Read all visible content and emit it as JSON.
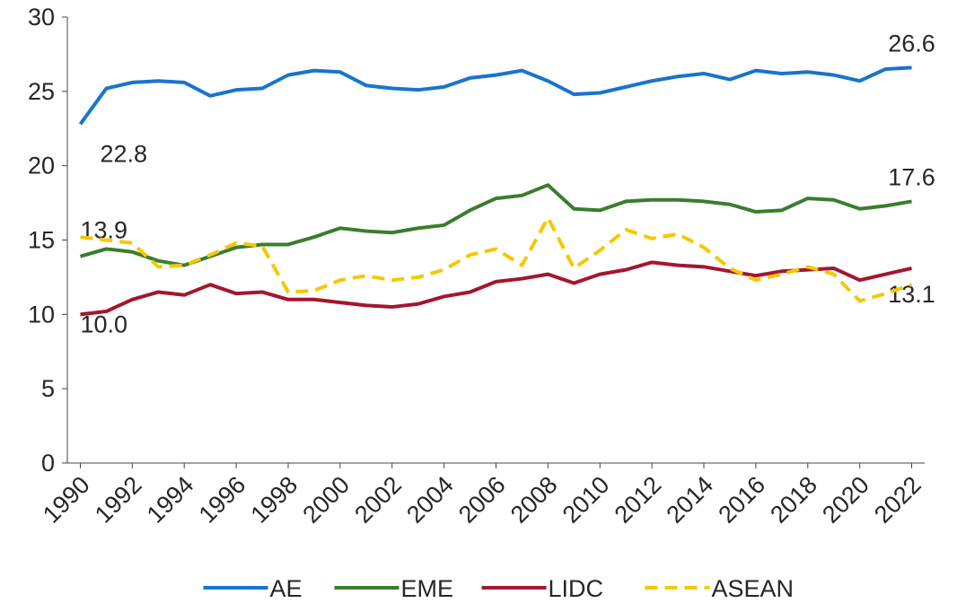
{
  "chart_data": {
    "type": "line",
    "x": [
      1990,
      1991,
      1992,
      1993,
      1994,
      1995,
      1996,
      1997,
      1998,
      1999,
      2000,
      2001,
      2002,
      2003,
      2004,
      2005,
      2006,
      2007,
      2008,
      2009,
      2010,
      2011,
      2012,
      2013,
      2014,
      2015,
      2016,
      2017,
      2018,
      2019,
      2020,
      2021,
      2022
    ],
    "xlim": [
      1989.5,
      2022.5
    ],
    "xticks": [
      1990,
      1992,
      1994,
      1996,
      1998,
      2000,
      2002,
      2004,
      2006,
      2008,
      2010,
      2012,
      2014,
      2016,
      2018,
      2020,
      2022
    ],
    "ylim": [
      0,
      30
    ],
    "yticks": [
      0,
      5,
      10,
      15,
      20,
      25,
      30
    ],
    "legend": "bottom",
    "series": [
      {
        "name": "AE",
        "color": "#1874cd",
        "dashed": false,
        "values": [
          22.8,
          25.2,
          25.6,
          25.7,
          25.6,
          24.7,
          25.1,
          25.2,
          26.1,
          26.4,
          26.3,
          25.4,
          25.2,
          25.1,
          25.3,
          25.9,
          26.1,
          26.4,
          25.7,
          24.8,
          24.9,
          25.3,
          25.7,
          26.0,
          26.2,
          25.8,
          26.4,
          26.2,
          26.3,
          26.1,
          25.7,
          26.5,
          26.6
        ],
        "value_labels": [
          "22.8",
          null,
          null,
          null,
          null,
          null,
          null,
          null,
          null,
          null,
          null,
          null,
          null,
          null,
          null,
          null,
          null,
          null,
          null,
          null,
          null,
          null,
          null,
          null,
          null,
          null,
          null,
          null,
          null,
          null,
          null,
          null,
          "26.6"
        ]
      },
      {
        "name": "EME",
        "color": "#3a7d2c",
        "dashed": false,
        "values": [
          13.9,
          14.4,
          14.2,
          13.6,
          13.3,
          13.9,
          14.5,
          14.7,
          14.7,
          15.2,
          15.8,
          15.6,
          15.5,
          15.8,
          16.0,
          17.0,
          17.8,
          18.0,
          18.7,
          17.1,
          17.0,
          17.6,
          17.7,
          17.7,
          17.6,
          17.4,
          16.9,
          17.0,
          17.8,
          17.7,
          17.1,
          17.3,
          17.6
        ],
        "value_labels": [
          "13.9",
          null,
          null,
          null,
          null,
          null,
          null,
          null,
          null,
          null,
          null,
          null,
          null,
          null,
          null,
          null,
          null,
          null,
          null,
          null,
          null,
          null,
          null,
          null,
          null,
          null,
          null,
          null,
          null,
          null,
          null,
          null,
          "17.6"
        ]
      },
      {
        "name": "LIDC",
        "color": "#a3162e",
        "dashed": false,
        "values": [
          10.0,
          10.2,
          11.0,
          11.5,
          11.3,
          12.0,
          11.4,
          11.5,
          11.0,
          11.0,
          10.8,
          10.6,
          10.5,
          10.7,
          11.2,
          11.5,
          12.2,
          12.4,
          12.7,
          12.1,
          12.7,
          13.0,
          13.5,
          13.3,
          13.2,
          12.9,
          12.6,
          12.9,
          13.0,
          13.1,
          12.3,
          12.7,
          13.1
        ],
        "value_labels": [
          "10.0",
          null,
          null,
          null,
          null,
          null,
          null,
          null,
          null,
          null,
          null,
          null,
          null,
          null,
          null,
          null,
          null,
          null,
          null,
          null,
          null,
          null,
          null,
          null,
          null,
          null,
          null,
          null,
          null,
          null,
          null,
          null,
          "13.1"
        ]
      },
      {
        "name": "ASEAN",
        "color": "#f5c800",
        "dashed": true,
        "values": [
          15.2,
          15.0,
          14.8,
          13.2,
          13.3,
          14.0,
          14.8,
          14.6,
          11.5,
          11.6,
          12.3,
          12.6,
          12.3,
          12.5,
          13.0,
          14.0,
          14.4,
          13.3,
          16.5,
          13.1,
          14.3,
          15.7,
          15.1,
          15.4,
          14.5,
          13.1,
          12.3,
          12.7,
          13.2,
          12.7,
          10.9,
          11.4,
          12.0
        ]
      }
    ]
  }
}
